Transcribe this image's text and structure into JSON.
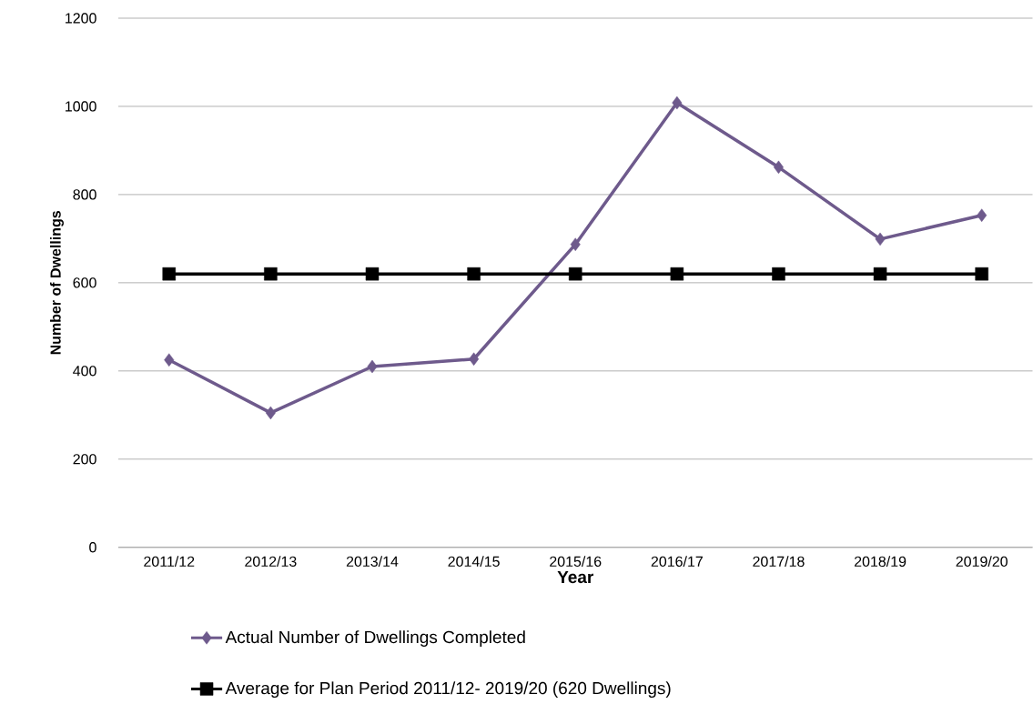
{
  "chart_data": {
    "type": "line",
    "xlabel": "Year",
    "ylabel": "Number of Dwellings",
    "categories": [
      "2011/12",
      "2012/13",
      "2013/14",
      "2014/15",
      "2015/16",
      "2016/17",
      "2017/18",
      "2018/19",
      "2019/20"
    ],
    "series": [
      {
        "name": "Actual Number of Dwellings Completed",
        "color": "#6e5a8c",
        "marker": "diamond",
        "values": [
          425,
          305,
          410,
          427,
          687,
          1008,
          862,
          699,
          753
        ]
      },
      {
        "name": "Average for Plan Period 2011/12- 2019/20 (620 Dwellings)",
        "color": "#000000",
        "marker": "square",
        "values": [
          620,
          620,
          620,
          620,
          620,
          620,
          620,
          620,
          620
        ]
      }
    ],
    "ylim": [
      0,
      1200
    ],
    "yticks": [
      0,
      200,
      400,
      600,
      800,
      1000,
      1200
    ],
    "grid": "y",
    "legend": "bottom",
    "line_style": "solid"
  }
}
